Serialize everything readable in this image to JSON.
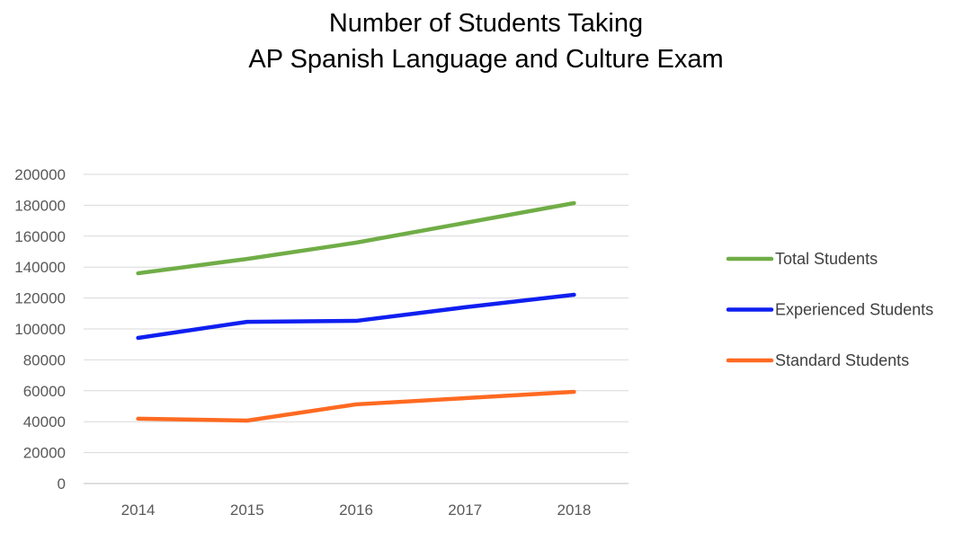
{
  "chart_data": {
    "type": "line",
    "title_lines": [
      "Number of Students Taking",
      "AP Spanish Language and Culture Exam"
    ],
    "xlabel": "",
    "ylabel": "",
    "categories": [
      "2014",
      "2015",
      "2016",
      "2017",
      "2018"
    ],
    "ylim": [
      0,
      200000
    ],
    "yticks": [
      "0",
      "20000",
      "40000",
      "60000",
      "80000",
      "100000",
      "120000",
      "140000",
      "160000",
      "180000",
      "200000"
    ],
    "grid": true,
    "legend_position": "right",
    "series": [
      {
        "name": "Total Students",
        "color": "#70AD47",
        "values": [
          136000,
          145300,
          155800,
          168600,
          181400
        ]
      },
      {
        "name": "Experienced Students",
        "color": "#0F1FF0",
        "values": [
          94200,
          104600,
          105200,
          114000,
          122100
        ]
      },
      {
        "name": "Standard Students",
        "color": "#FF6A21",
        "values": [
          41900,
          40700,
          51200,
          55200,
          59300
        ]
      }
    ]
  }
}
